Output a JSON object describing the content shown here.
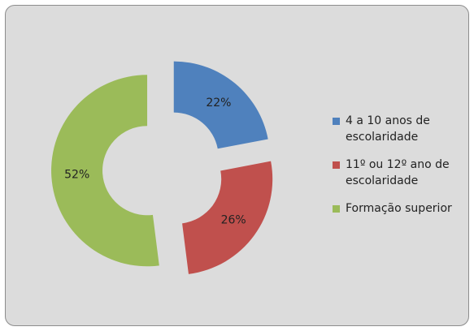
{
  "chart_data": {
    "type": "donut",
    "categories": [
      "4 a 10 anos de escolaridade",
      "11º ou 12º ano de escolaridade",
      "Formação superior"
    ],
    "values": [
      22,
      26,
      52
    ],
    "value_labels": [
      "22%",
      "26%",
      "52%"
    ],
    "colors": [
      "#4f81bd",
      "#c0504d",
      "#9bbb59"
    ],
    "legend": "right"
  }
}
